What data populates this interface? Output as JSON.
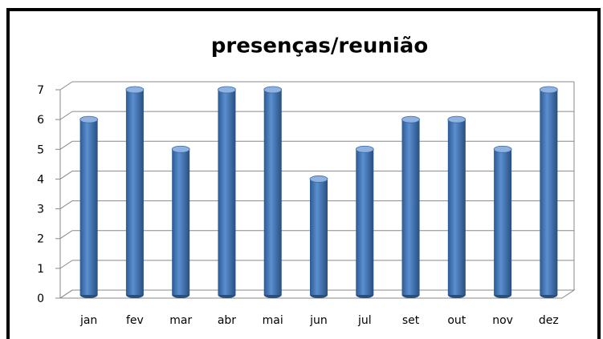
{
  "chart_data": {
    "type": "bar",
    "title": "presenças/reunião",
    "categories": [
      "jan",
      "fev",
      "mar",
      "abr",
      "mai",
      "jun",
      "jul",
      "set",
      "out",
      "nov",
      "dez"
    ],
    "values": [
      6,
      7,
      5,
      7,
      7,
      4,
      5,
      6,
      6,
      5,
      7
    ],
    "color": "#4a7ebb",
    "ylim": [
      0,
      7
    ],
    "yticks": [
      0,
      1,
      2,
      3,
      4,
      5,
      6,
      7
    ],
    "grid": true
  }
}
